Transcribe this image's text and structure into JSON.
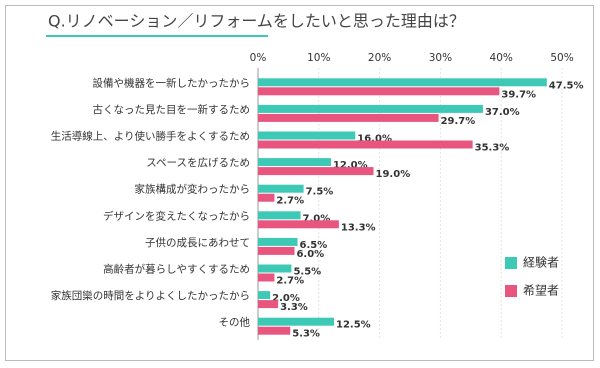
{
  "chart_data": {
    "type": "bar",
    "orientation": "horizontal",
    "title": "Q.リノベーション／リフォームをしたいと思った理由は？",
    "categories": [
      "設備や機器を一新したかったから",
      "古くなった見た目を一新するため",
      "生活導線上、より使い勝手をよくするため",
      "スペースを広げるため",
      "家族構成が変わったから",
      "デザインを変えたくなったから",
      "子供の成長にあわせて",
      "高齢者が暮らしやすくするため",
      "家族団欒の時間をよりよくしたかったから",
      "その他"
    ],
    "series": [
      {
        "name": "経験者",
        "color": "#3ec9b6",
        "values": [
          47.5,
          37.0,
          16.0,
          12.0,
          7.5,
          7.0,
          6.5,
          5.5,
          2.0,
          12.5
        ],
        "value_labels": [
          "47.5%",
          "37.0%",
          "16.0%",
          "12.0%",
          "7.5%",
          "7.0%",
          "6.5%",
          "5.5%",
          "2.0%",
          "12.5%"
        ]
      },
      {
        "name": "希望者",
        "color": "#e8557f",
        "values": [
          39.7,
          29.7,
          35.3,
          19.0,
          2.7,
          13.3,
          6.0,
          2.7,
          3.3,
          5.3
        ],
        "value_labels": [
          "39.7%",
          "29.7%",
          "35.3%",
          "19.0%",
          "2.7%",
          "13.3%",
          "6.0%",
          "2.7%",
          "3.3%",
          "5.3%"
        ]
      }
    ],
    "xlim": [
      0,
      50
    ],
    "xticks": [
      {
        "value": 0,
        "label": "0%"
      },
      {
        "value": 10,
        "label": "10%"
      },
      {
        "value": 20,
        "label": "20%"
      },
      {
        "value": 30,
        "label": "30%"
      },
      {
        "value": 40,
        "label": "40%"
      },
      {
        "value": 50,
        "label": "50%"
      }
    ],
    "grid": true,
    "legend": "right"
  }
}
